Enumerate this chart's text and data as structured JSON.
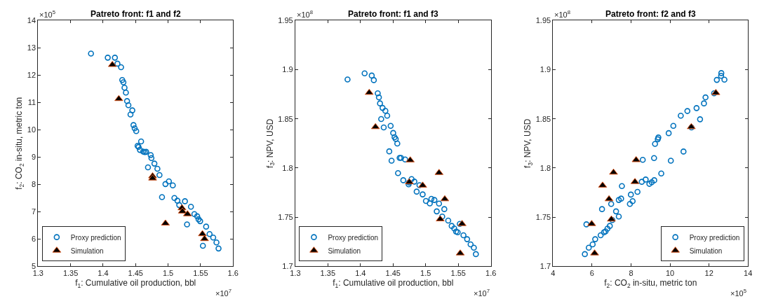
{
  "chart_data": [
    {
      "type": "scatter",
      "title": "Patreto front: f1 and f2",
      "xlabel": "f$_{1}$: Cumulative oil production, bbl",
      "ylabel": "f$_{2}$: CO$_{2}$ in-situ, metric ton",
      "annotations": [
        "×10$^{5}$",
        "×10$^{7}$"
      ],
      "xlim": [
        1.3,
        1.6
      ],
      "xticks": [
        1.3,
        1.35,
        1.4,
        1.45,
        1.5,
        1.55,
        1.6
      ],
      "ylim": [
        5,
        14
      ],
      "yticks": [
        5,
        6,
        7,
        8,
        9,
        10,
        11,
        12,
        13,
        14
      ],
      "grid": false,
      "legend": "bottom left",
      "series": [
        {
          "name": "Proxy prediction",
          "color": "#0072bd",
          "marker": "circle",
          "x": [
            1.3814,
            1.4072,
            1.4182,
            1.4221,
            1.4277,
            1.4295,
            1.4313,
            1.433,
            1.4351,
            1.4369,
            1.439,
            1.445,
            1.4422,
            1.4468,
            1.4486,
            1.451,
            1.4585,
            1.4531,
            1.4546,
            1.4567,
            1.4617,
            1.4641,
            1.4663,
            1.4733,
            1.4744,
            1.4691,
            1.479,
            1.4836,
            1.4868,
            1.496,
            1.5013,
            1.5073,
            1.4907,
            1.5098,
            1.5144,
            1.5172,
            1.526,
            1.5352,
            1.5405,
            1.5448,
            1.5469,
            1.5494,
            1.5292,
            1.5586,
            1.5639,
            1.5695,
            1.5745,
            1.5777,
            1.5536
          ],
          "values": [
            12.79,
            12.64,
            12.64,
            12.42,
            12.29,
            11.82,
            11.74,
            11.54,
            11.36,
            11.05,
            10.9,
            10.71,
            10.56,
            10.17,
            10.05,
            9.95,
            9.57,
            9.41,
            9.37,
            9.26,
            9.2,
            9.18,
            9.19,
            9.07,
            8.96,
            8.62,
            8.76,
            8.57,
            8.34,
            8.01,
            8.11,
            7.96,
            7.53,
            7.5,
            7.4,
            7.24,
            7.38,
            7.18,
            6.91,
            6.83,
            6.72,
            6.65,
            6.53,
            6.45,
            6.18,
            6.05,
            5.87,
            5.65,
            5.75
          ]
        },
        {
          "name": "Simulation",
          "color": "#000000",
          "marker": "triangle",
          "x": [
            1.4143,
            1.4242,
            1.4762,
            1.4762,
            1.496,
            1.5214,
            1.5221,
            1.5299,
            1.5529,
            1.5561
          ],
          "values": [
            12.38,
            11.13,
            8.3,
            8.22,
            6.57,
            7.13,
            7.01,
            6.91,
            6.18,
            6.0
          ]
        }
      ]
    },
    {
      "type": "scatter",
      "title": "Patreto front: f1 and f3",
      "xlabel": "f$_{1}$: Cumulative oil production, bbl",
      "ylabel": "f$_{3}$: NPV, USD",
      "annotations": [
        "×10$^{8}$",
        "×10$^{7}$"
      ],
      "xlim": [
        1.3,
        1.6
      ],
      "xticks": [
        1.3,
        1.35,
        1.4,
        1.45,
        1.5,
        1.55,
        1.6
      ],
      "ylim": [
        1.7,
        1.95
      ],
      "yticks": [
        1.7,
        1.75,
        1.8,
        1.85,
        1.9,
        1.95
      ],
      "grid": false,
      "legend": "bottom left",
      "series": [
        {
          "name": "Proxy prediction",
          "color": "#0072bd",
          "marker": "circle",
          "x": [
            1.3802,
            1.4064,
            1.4173,
            1.4205,
            1.4265,
            1.4283,
            1.43,
            1.4339,
            1.4382,
            1.441,
            1.4318,
            1.4357,
            1.4463,
            1.4502,
            1.4523,
            1.4541,
            1.4565,
            1.4442,
            1.4477,
            1.4601,
            1.4622,
            1.4686,
            1.4576,
            1.4657,
            1.4739,
            1.4746,
            1.4784,
            1.4827,
            1.4905,
            1.4862,
            1.4954,
            1.5004,
            1.5064,
            1.5088,
            1.5134,
            1.5205,
            1.517,
            1.5254,
            1.5286,
            1.5346,
            1.5399,
            1.5438,
            1.5466,
            1.5491,
            1.5523,
            1.558,
            1.5636,
            1.5689,
            1.5739,
            1.577
          ],
          "values": [
            1.89,
            1.8963,
            1.894,
            1.8894,
            1.8759,
            1.8718,
            1.8657,
            1.8611,
            1.8581,
            1.8532,
            1.8498,
            1.8412,
            1.8428,
            1.8356,
            1.8312,
            1.8294,
            1.8248,
            1.8169,
            1.8074,
            1.8102,
            1.8102,
            1.8086,
            1.7947,
            1.7875,
            1.7833,
            1.7852,
            1.7887,
            1.7861,
            1.7824,
            1.7759,
            1.7731,
            1.7664,
            1.7639,
            1.7685,
            1.7674,
            1.7637,
            1.7558,
            1.7505,
            1.7581,
            1.7465,
            1.741,
            1.7384,
            1.7352,
            1.7345,
            1.7431,
            1.7315,
            1.7275,
            1.7222,
            1.7188,
            1.7123
          ]
        },
        {
          "name": "Simulation",
          "color": "#000000",
          "marker": "triangle",
          "x": [
            1.4134,
            1.423,
            1.4763,
            1.4749,
            1.4954,
            1.5205,
            1.5223,
            1.5293,
            1.5558,
            1.553
          ],
          "values": [
            1.8766,
            1.8417,
            1.8079,
            1.7856,
            1.7822,
            1.7951,
            1.7479,
            1.7683,
            1.7431,
            1.7132
          ]
        }
      ]
    },
    {
      "type": "scatter",
      "title": "Patreto front: f2 and f3",
      "xlabel": "f$_{2}$: CO$_{2}$ in-situ, metric ton",
      "ylabel": "f$_{3}$: NPV, USD",
      "annotations": [
        "×10$^{8}$",
        "×10$^{5}$"
      ],
      "xlim": [
        4,
        14
      ],
      "xticks": [
        4,
        6,
        8,
        10,
        12,
        14
      ],
      "ylim": [
        1.7,
        1.95
      ],
      "yticks": [
        1.7,
        1.75,
        1.8,
        1.85,
        1.9,
        1.95
      ],
      "grid": false,
      "legend": "bottom right",
      "series": [
        {
          "name": "Proxy prediction",
          "color": "#0072bd",
          "marker": "circle",
          "x": [
            5.63,
            5.83,
            6.03,
            6.16,
            5.71,
            6.44,
            6.61,
            6.69,
            6.79,
            6.91,
            7.04,
            7.37,
            7.23,
            6.51,
            6.98,
            7.37,
            7.49,
            7.53,
            7.94,
            8.08,
            7.99,
            8.33,
            8.55,
            8.75,
            8.94,
            9.06,
            9.19,
            9.55,
            10.04,
            10.69,
            9.18,
            8.6,
            9.23,
            9.37,
            9.4,
            9.93,
            10.17,
            10.55,
            10.89,
            11.36,
            11.54,
            11.74,
            11.82,
            12.4,
            12.62,
            12.63,
            12.79,
            12.26,
            11.1
          ],
          "values": [
            1.7123,
            1.7188,
            1.7222,
            1.7275,
            1.7426,
            1.7315,
            1.7345,
            1.7354,
            1.7382,
            1.741,
            1.747,
            1.7505,
            1.7558,
            1.7581,
            1.7634,
            1.7674,
            1.7688,
            1.7815,
            1.7634,
            1.7662,
            1.7729,
            1.7757,
            1.7859,
            1.7882,
            1.7838,
            1.7854,
            1.7875,
            1.7944,
            1.8074,
            1.8167,
            1.81,
            1.8083,
            1.8245,
            1.8292,
            1.831,
            1.8354,
            1.8428,
            1.8532,
            1.8579,
            1.8609,
            1.8495,
            1.8657,
            1.8718,
            1.8896,
            1.8938,
            1.8965,
            1.8898,
            1.8759,
            1.8412
          ]
        },
        {
          "name": "Simulation",
          "color": "#000000",
          "marker": "triangle",
          "x": [
            6.13,
            5.98,
            6.99,
            6.87,
            6.54,
            7.1,
            8.2,
            8.26,
            11.09,
            12.35
          ],
          "values": [
            1.7132,
            1.7431,
            1.7477,
            1.7683,
            1.7822,
            1.7954,
            1.7859,
            1.8081,
            1.8417,
            1.8764
          ]
        }
      ]
    }
  ]
}
